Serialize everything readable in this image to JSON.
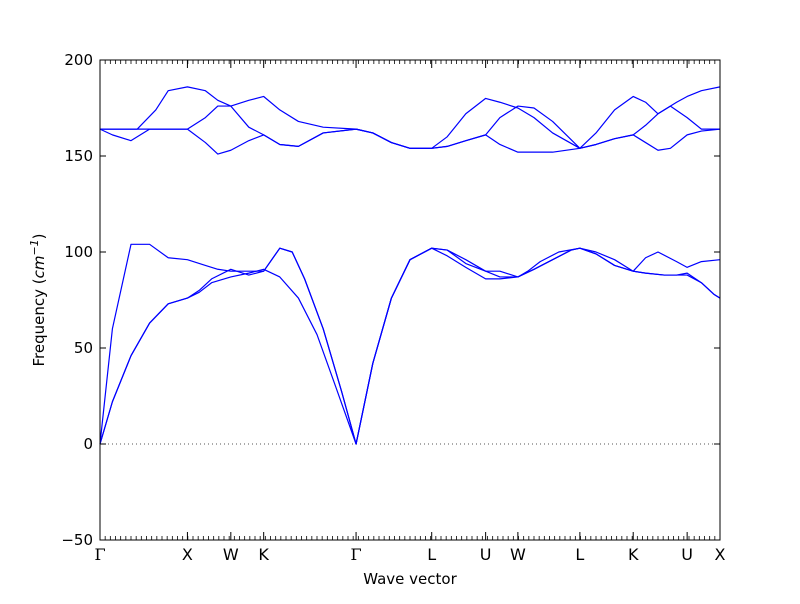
{
  "chart_data": {
    "type": "line",
    "xlabel": "Wave vector",
    "ylabel": "Frequency ($cm^{-1}$)",
    "ylabel_main": "Frequency (",
    "ylabel_unit_base": "cm",
    "ylabel_unit_sup": "−1",
    "ylabel_close": ")",
    "ylim": [
      -50,
      200
    ],
    "yticks": [
      -50,
      0,
      50,
      100,
      150,
      200
    ],
    "zero_line": true,
    "line_color": "#0000ff",
    "kpoints": [
      {
        "label": "Γ",
        "x": 0.0
      },
      {
        "label": "X",
        "x": 0.141
      },
      {
        "label": "W",
        "x": 0.211
      },
      {
        "label": "K",
        "x": 0.264
      },
      {
        "label": "Γ",
        "x": 0.413
      },
      {
        "label": "L",
        "x": 0.535
      },
      {
        "label": "U",
        "x": 0.622
      },
      {
        "label": "W",
        "x": 0.674
      },
      {
        "label": "L",
        "x": 0.774
      },
      {
        "label": "K",
        "x": 0.86
      },
      {
        "label": "U",
        "x": 0.947
      },
      {
        "label": "X",
        "x": 1.0
      }
    ],
    "series": [
      {
        "values": [
          [
            0,
            0
          ],
          [
            0.02,
            22
          ],
          [
            0.05,
            46
          ],
          [
            0.08,
            63
          ],
          [
            0.11,
            73
          ],
          [
            0.141,
            76
          ],
          [
            0.16,
            79
          ],
          [
            0.18,
            84
          ],
          [
            0.211,
            87
          ],
          [
            0.24,
            89
          ],
          [
            0.264,
            91
          ],
          [
            0.29,
            87
          ],
          [
            0.32,
            76
          ],
          [
            0.35,
            57
          ],
          [
            0.38,
            30
          ],
          [
            0.413,
            0
          ],
          [
            0.44,
            42
          ],
          [
            0.47,
            76
          ],
          [
            0.5,
            96
          ],
          [
            0.535,
            102
          ],
          [
            0.56,
            98
          ],
          [
            0.59,
            92
          ],
          [
            0.622,
            86
          ],
          [
            0.645,
            86
          ],
          [
            0.674,
            87
          ],
          [
            0.7,
            91
          ],
          [
            0.73,
            96
          ],
          [
            0.76,
            101
          ],
          [
            0.774,
            102
          ],
          [
            0.8,
            99
          ],
          [
            0.83,
            93
          ],
          [
            0.86,
            90
          ],
          [
            0.88,
            89
          ],
          [
            0.91,
            88
          ],
          [
            0.93,
            88
          ],
          [
            0.947,
            88
          ],
          [
            0.97,
            84
          ],
          [
            0.99,
            78
          ],
          [
            1.0,
            76
          ]
        ]
      },
      {
        "values": [
          [
            0,
            0
          ],
          [
            0.02,
            22
          ],
          [
            0.05,
            46
          ],
          [
            0.08,
            63
          ],
          [
            0.11,
            73
          ],
          [
            0.141,
            76
          ],
          [
            0.16,
            80
          ],
          [
            0.18,
            86
          ],
          [
            0.211,
            91
          ],
          [
            0.24,
            88
          ],
          [
            0.264,
            90
          ],
          [
            0.29,
            102
          ],
          [
            0.31,
            100
          ],
          [
            0.33,
            86
          ],
          [
            0.36,
            60
          ],
          [
            0.39,
            27
          ],
          [
            0.413,
            0
          ],
          [
            0.44,
            42
          ],
          [
            0.47,
            76
          ],
          [
            0.5,
            96
          ],
          [
            0.535,
            102
          ],
          [
            0.56,
            101
          ],
          [
            0.59,
            94
          ],
          [
            0.622,
            90
          ],
          [
            0.645,
            87
          ],
          [
            0.674,
            87
          ],
          [
            0.7,
            91
          ],
          [
            0.73,
            96
          ],
          [
            0.76,
            101
          ],
          [
            0.774,
            102
          ],
          [
            0.8,
            99
          ],
          [
            0.83,
            93
          ],
          [
            0.86,
            90
          ],
          [
            0.88,
            89
          ],
          [
            0.91,
            88
          ],
          [
            0.93,
            88
          ],
          [
            0.947,
            89
          ],
          [
            0.97,
            84
          ],
          [
            0.99,
            78
          ],
          [
            1.0,
            76
          ]
        ]
      },
      {
        "values": [
          [
            0,
            0
          ],
          [
            0.02,
            60
          ],
          [
            0.05,
            104
          ],
          [
            0.08,
            104
          ],
          [
            0.11,
            97
          ],
          [
            0.141,
            96
          ],
          [
            0.17,
            93
          ],
          [
            0.19,
            91
          ],
          [
            0.211,
            90
          ],
          [
            0.24,
            90
          ],
          [
            0.264,
            90
          ],
          [
            0.29,
            102
          ],
          [
            0.31,
            100
          ],
          [
            0.33,
            86
          ],
          [
            0.36,
            60
          ],
          [
            0.39,
            27
          ],
          [
            0.413,
            0
          ],
          [
            0.44,
            42
          ],
          [
            0.47,
            76
          ],
          [
            0.5,
            96
          ],
          [
            0.535,
            102
          ],
          [
            0.56,
            101
          ],
          [
            0.59,
            96
          ],
          [
            0.622,
            90
          ],
          [
            0.645,
            90
          ],
          [
            0.674,
            87
          ],
          [
            0.69,
            90
          ],
          [
            0.71,
            95
          ],
          [
            0.74,
            100
          ],
          [
            0.774,
            102
          ],
          [
            0.8,
            100
          ],
          [
            0.83,
            96
          ],
          [
            0.86,
            90
          ],
          [
            0.88,
            97
          ],
          [
            0.9,
            100
          ],
          [
            0.93,
            95
          ],
          [
            0.947,
            92
          ],
          [
            0.97,
            95
          ],
          [
            1.0,
            96
          ]
        ]
      },
      {
        "values": [
          [
            0,
            164
          ],
          [
            0.02,
            164
          ],
          [
            0.05,
            164
          ],
          [
            0.08,
            164
          ],
          [
            0.11,
            164
          ],
          [
            0.141,
            164
          ],
          [
            0.17,
            157
          ],
          [
            0.19,
            151
          ],
          [
            0.211,
            153
          ],
          [
            0.24,
            158
          ],
          [
            0.264,
            161
          ],
          [
            0.29,
            156
          ],
          [
            0.32,
            155
          ],
          [
            0.36,
            162
          ],
          [
            0.413,
            164
          ],
          [
            0.44,
            162
          ],
          [
            0.47,
            157
          ],
          [
            0.5,
            154
          ],
          [
            0.535,
            154
          ],
          [
            0.56,
            155
          ],
          [
            0.59,
            158
          ],
          [
            0.622,
            161
          ],
          [
            0.645,
            156
          ],
          [
            0.674,
            152
          ],
          [
            0.7,
            152
          ],
          [
            0.73,
            152
          ],
          [
            0.774,
            154
          ],
          [
            0.8,
            156
          ],
          [
            0.83,
            159
          ],
          [
            0.86,
            161
          ],
          [
            0.88,
            157
          ],
          [
            0.9,
            153
          ],
          [
            0.92,
            154
          ],
          [
            0.947,
            161
          ],
          [
            0.97,
            163
          ],
          [
            1.0,
            164
          ]
        ]
      },
      {
        "values": [
          [
            0,
            164
          ],
          [
            0.02,
            161
          ],
          [
            0.05,
            158
          ],
          [
            0.08,
            164
          ],
          [
            0.11,
            164
          ],
          [
            0.141,
            164
          ],
          [
            0.17,
            170
          ],
          [
            0.19,
            176
          ],
          [
            0.211,
            176
          ],
          [
            0.24,
            165
          ],
          [
            0.264,
            161
          ],
          [
            0.29,
            156
          ],
          [
            0.32,
            155
          ],
          [
            0.36,
            162
          ],
          [
            0.413,
            164
          ],
          [
            0.44,
            162
          ],
          [
            0.47,
            157
          ],
          [
            0.5,
            154
          ],
          [
            0.535,
            154
          ],
          [
            0.56,
            155
          ],
          [
            0.59,
            158
          ],
          [
            0.622,
            161
          ],
          [
            0.645,
            170
          ],
          [
            0.674,
            176
          ],
          [
            0.7,
            175
          ],
          [
            0.73,
            168
          ],
          [
            0.774,
            154
          ],
          [
            0.8,
            156
          ],
          [
            0.83,
            159
          ],
          [
            0.86,
            161
          ],
          [
            0.88,
            166
          ],
          [
            0.9,
            172
          ],
          [
            0.92,
            176
          ],
          [
            0.947,
            170
          ],
          [
            0.97,
            164
          ],
          [
            1.0,
            164
          ]
        ]
      },
      {
        "values": [
          [
            0,
            164
          ],
          [
            0.03,
            164
          ],
          [
            0.06,
            164
          ],
          [
            0.09,
            174
          ],
          [
            0.11,
            184
          ],
          [
            0.141,
            186
          ],
          [
            0.17,
            184
          ],
          [
            0.19,
            179
          ],
          [
            0.211,
            176
          ],
          [
            0.24,
            179
          ],
          [
            0.264,
            181
          ],
          [
            0.29,
            174
          ],
          [
            0.32,
            168
          ],
          [
            0.36,
            165
          ],
          [
            0.413,
            164
          ],
          [
            0.44,
            162
          ],
          [
            0.47,
            157
          ],
          [
            0.5,
            154
          ],
          [
            0.535,
            154
          ],
          [
            0.56,
            160
          ],
          [
            0.59,
            172
          ],
          [
            0.622,
            180
          ],
          [
            0.645,
            178
          ],
          [
            0.674,
            175
          ],
          [
            0.7,
            170
          ],
          [
            0.73,
            162
          ],
          [
            0.774,
            154
          ],
          [
            0.8,
            162
          ],
          [
            0.83,
            174
          ],
          [
            0.86,
            181
          ],
          [
            0.88,
            178
          ],
          [
            0.9,
            172
          ],
          [
            0.93,
            178
          ],
          [
            0.947,
            181
          ],
          [
            0.97,
            184
          ],
          [
            1.0,
            186
          ]
        ]
      }
    ]
  }
}
